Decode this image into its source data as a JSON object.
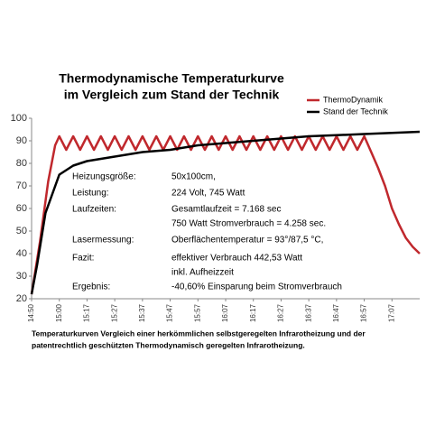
{
  "chart_data": {
    "type": "line",
    "title": [
      "Thermodynamische Temperaturkurve",
      "im Vergleich zum Stand der Technik"
    ],
    "xlim": [
      0,
      14
    ],
    "xticks": [
      {
        "value": 0,
        "label": "14:50"
      },
      {
        "value": 1,
        "label": "15:00"
      },
      {
        "value": 2,
        "label": "15:17"
      },
      {
        "value": 3,
        "label": "15:27"
      },
      {
        "value": 4,
        "label": "15:37"
      },
      {
        "value": 5,
        "label": "15:47"
      },
      {
        "value": 6,
        "label": "15:57"
      },
      {
        "value": 7,
        "label": "16:07"
      },
      {
        "value": 8,
        "label": "16:17"
      },
      {
        "value": 9,
        "label": "16:27"
      },
      {
        "value": 10,
        "label": "16:37"
      },
      {
        "value": 11,
        "label": "16:47"
      },
      {
        "value": 12,
        "label": "16:57"
      },
      {
        "value": 13,
        "label": "17:07"
      }
    ],
    "ylim": [
      20,
      100
    ],
    "yticks": [
      20,
      30,
      40,
      50,
      60,
      70,
      80,
      90,
      100
    ],
    "grid": false,
    "legend": "top-right",
    "series": [
      {
        "name": "ThermoDynamik",
        "color": "#c0282d",
        "x": [
          0,
          0.3,
          0.6,
          0.85,
          1.0,
          1.25,
          1.5,
          1.75,
          2.0,
          2.25,
          2.5,
          2.75,
          3.0,
          3.25,
          3.5,
          3.75,
          4.0,
          4.25,
          4.5,
          4.75,
          5.0,
          5.25,
          5.5,
          5.75,
          6.0,
          6.25,
          6.5,
          6.75,
          7.0,
          7.25,
          7.5,
          7.75,
          8.0,
          8.25,
          8.5,
          8.75,
          9.0,
          9.25,
          9.5,
          9.75,
          10.0,
          10.25,
          10.5,
          10.75,
          11.0,
          11.25,
          11.5,
          11.75,
          12.0,
          12.25,
          12.5,
          12.75,
          13.0,
          13.25,
          13.5,
          13.75,
          14.0
        ],
        "values": [
          22,
          45,
          72,
          88,
          92,
          86,
          92,
          86,
          92,
          86,
          92,
          86,
          92,
          86,
          92,
          86,
          92,
          86,
          92,
          86,
          92,
          86,
          92,
          86,
          92,
          86,
          92,
          86,
          92,
          86,
          92,
          86,
          92,
          86,
          92,
          86,
          92,
          86,
          92,
          86,
          92,
          86,
          92,
          86,
          92,
          86,
          92,
          86,
          92,
          85,
          78,
          70,
          60,
          53,
          47,
          43,
          40
        ]
      },
      {
        "name": "Stand der Technik",
        "color": "#000000",
        "x": [
          0,
          0.2,
          0.5,
          1,
          1.5,
          2,
          3,
          4,
          5,
          6,
          7,
          8,
          9,
          10,
          11,
          12,
          13,
          14
        ],
        "values": [
          22,
          35,
          58,
          75,
          79,
          81,
          83,
          85,
          86,
          88,
          89,
          90,
          91,
          92,
          92.5,
          93,
          93.5,
          94
        ]
      }
    ],
    "info": [
      {
        "label": "Heizungsgröße:",
        "lines": [
          "50x100cm,"
        ]
      },
      {
        "label": "Leistung:",
        "lines": [
          "224 Volt, 745 Watt"
        ]
      },
      {
        "label": "Laufzeiten:",
        "lines": [
          "Gesamtlaufzeit = 7.168 sec",
          "750 Watt Stromverbrauch = 4.258 sec."
        ]
      },
      {
        "label": "Lasermessung:",
        "lines": [
          "Oberflächentemperatur = 93°/87,5 °C,"
        ]
      },
      {
        "label": "Fazit:",
        "lines": [
          "effektiver Verbrauch 442,53 Watt",
          "inkl. Aufheizzeit"
        ]
      },
      {
        "label": "Ergebnis:",
        "lines": [
          "-40,60% Einsparung  beim Stromverbrauch"
        ]
      }
    ],
    "caption": [
      "Temperaturkurven Vergleich einer herkömmlichen selbstgeregelten Infrarotheizung und der",
      "patentrechtlich geschützten Thermodynamisch geregelten Infrarotheizung."
    ]
  }
}
